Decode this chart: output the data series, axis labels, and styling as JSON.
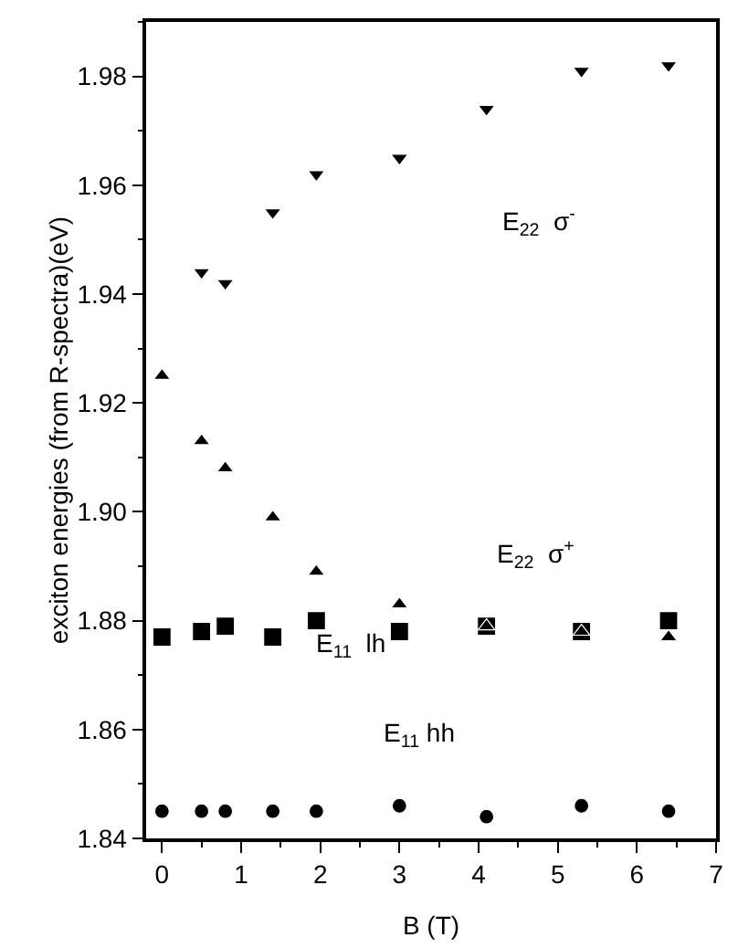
{
  "chart_data": {
    "type": "scatter",
    "xlabel": "B (T)",
    "ylabel": "exciton energies (from R-spectra)(eV)",
    "x": [
      0,
      0.5,
      0.8,
      1.4,
      1.95,
      3.0,
      4.1,
      5.3,
      6.4
    ],
    "series": [
      {
        "color": "#000000",
        "marker": "square",
        "values": [
          1.877,
          1.878,
          1.879,
          1.877,
          1.88,
          1.878,
          1.879,
          1.878,
          1.88
        ]
      },
      {
        "color": "#000000",
        "marker": "circle",
        "values": [
          1.845,
          1.845,
          1.845,
          1.845,
          1.845,
          1.846,
          1.844,
          1.846,
          1.845
        ]
      },
      {
        "color": "#000000",
        "marker": "triangle-down",
        "x": [
          0.5,
          0.8,
          1.4,
          1.95,
          3.0,
          4.1,
          5.3,
          6.4
        ],
        "values": [
          1.944,
          1.942,
          1.955,
          1.962,
          1.965,
          1.974,
          1.981,
          1.982
        ]
      },
      {
        "color": "#000000",
        "marker": "triangle",
        "values": [
          1.925,
          1.913,
          1.908,
          1.899,
          1.889,
          1.883,
          1.879,
          1.878,
          1.877
        ]
      }
    ],
    "annotations": [
      "E$_{22}$  σ$^{-}$",
      "E$_{22}$  σ$^{+}$",
      "E$_{11}$  lh",
      "E$_{11}$ hh"
    ],
    "xlim": [
      -0.2,
      7
    ],
    "xticks": [
      0,
      1,
      2,
      3,
      4,
      5,
      6,
      7
    ],
    "ylim": [
      1.84,
      1.99
    ],
    "yticks": [
      1.84,
      1.86,
      1.88,
      {
        "value": 1.9,
        "label": "1.90"
      },
      1.92,
      1.94,
      1.96,
      1.98
    ],
    "grid": false
  }
}
